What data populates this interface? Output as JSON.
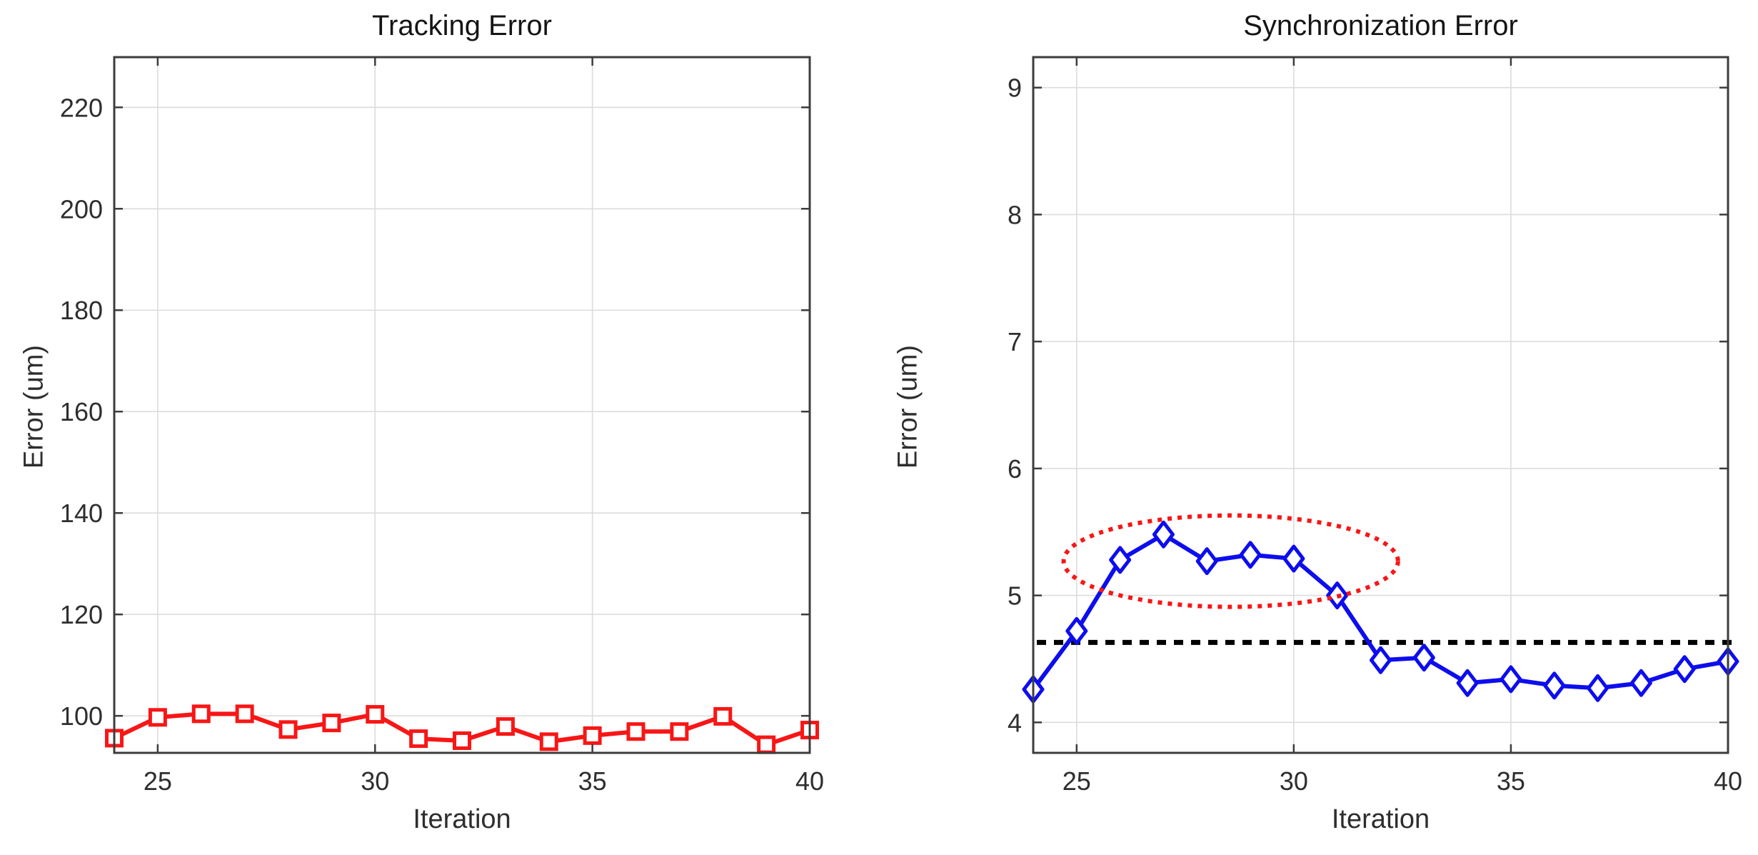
{
  "figure": {
    "background": "#ffffff",
    "axis_color": "#3c3c3c",
    "grid_color": "#dcdcdc",
    "tick_label_color": "#2e2e2e",
    "title_color": "#151515"
  },
  "chart_data": [
    {
      "type": "line",
      "title": "Tracking Error",
      "xlabel": "Iteration",
      "ylabel": "Error (um)",
      "x": [
        24,
        25,
        26,
        27,
        28,
        29,
        30,
        31,
        32,
        33,
        34,
        35,
        36,
        37,
        38,
        39,
        40
      ],
      "series": [
        {
          "name": "tracking-error",
          "color": "#f81616",
          "marker": "square",
          "values": [
            95.6,
            99.7,
            100.4,
            100.4,
            97.3,
            98.6,
            100.3,
            95.5,
            95.1,
            97.9,
            94.9,
            96.1,
            96.9,
            96.9,
            99.9,
            94.3,
            97.2
          ]
        }
      ],
      "xlim": [
        24,
        40
      ],
      "ylim": [
        92.7,
        229.9
      ],
      "xticks": [
        25,
        30,
        35,
        40
      ],
      "yticks": [
        100,
        120,
        140,
        160,
        180,
        200,
        220
      ],
      "grid": true,
      "legend": null
    },
    {
      "type": "line",
      "title": "Synchronization Error",
      "xlabel": "Iteration",
      "ylabel": "Error (um)",
      "x": [
        24,
        25,
        26,
        27,
        28,
        29,
        30,
        31,
        32,
        33,
        34,
        35,
        36,
        37,
        38,
        39,
        40
      ],
      "series": [
        {
          "name": "synchronization-error",
          "color": "#0d0dee",
          "marker": "diamond",
          "values": [
            4.26,
            4.72,
            5.28,
            5.48,
            5.27,
            5.32,
            5.29,
            5.0,
            4.49,
            4.51,
            4.31,
            4.34,
            4.29,
            4.27,
            4.31,
            4.42,
            4.48
          ]
        }
      ],
      "xlim": [
        24,
        40
      ],
      "ylim": [
        3.76,
        9.24
      ],
      "xticks": [
        25,
        30,
        35,
        40
      ],
      "yticks": [
        4,
        5,
        6,
        7,
        8,
        9
      ],
      "grid": true,
      "legend": null,
      "annotations": {
        "threshold_line": {
          "y": 4.63,
          "color": "#000000",
          "style": "dotted"
        },
        "highlight_ellipse": {
          "cx": 28.55,
          "cy": 5.27,
          "rx": 3.85,
          "ry": 0.36,
          "color": "#f81616",
          "style": "dotted"
        }
      }
    }
  ]
}
